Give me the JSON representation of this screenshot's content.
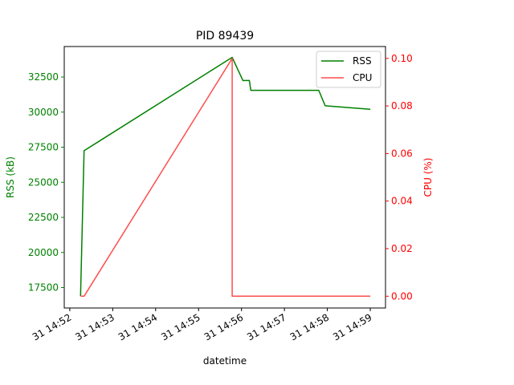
{
  "chart_data": {
    "type": "line",
    "title": "PID 89439",
    "xlabel": "datetime",
    "ylabel_left": "RSS (kB)",
    "ylabel_right": "CPU (%)",
    "x_ticks": [
      "31 14:52",
      "31 14:53",
      "31 14:54",
      "31 14:55",
      "31 14:56",
      "31 14:57",
      "31 14:58",
      "31 14:59"
    ],
    "y_left_ticks": [
      "17500",
      "20000",
      "22500",
      "25000",
      "27500",
      "30000",
      "32500"
    ],
    "y_right_ticks": [
      "0.00",
      "0.02",
      "0.04",
      "0.06",
      "0.08",
      "0.10"
    ],
    "legend_position": "top-right",
    "grid": false,
    "colors": {
      "RSS": "#008000",
      "CPU": "#ff4d4d",
      "left_axis": "#008000",
      "right_axis": "#ff0000"
    },
    "series": [
      {
        "name": "RSS",
        "axis": "left",
        "x": [
          "14:52:15",
          "14:52:20",
          "14:55:47",
          "14:56:02",
          "14:56:11",
          "14:56:13",
          "14:57:48",
          "14:57:57",
          "14:59:00"
        ],
        "values": [
          16900,
          27250,
          33900,
          32250,
          32250,
          31550,
          31550,
          30450,
          30200
        ]
      },
      {
        "name": "CPU",
        "axis": "right",
        "x": [
          "14:52:15",
          "14:52:20",
          "14:55:47",
          "14:55:47",
          "14:59:00"
        ],
        "values": [
          0.0,
          0.0,
          0.1,
          0.0,
          0.0
        ]
      }
    ]
  }
}
